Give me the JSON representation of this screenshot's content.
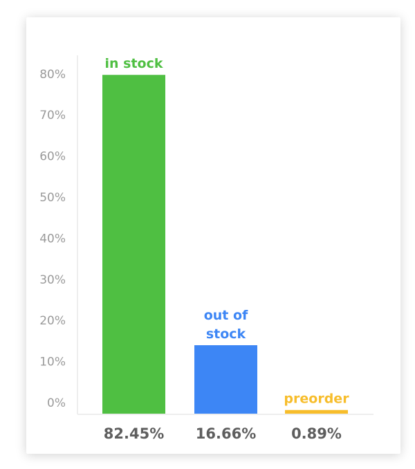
{
  "chart_data": {
    "type": "bar",
    "categories": [
      "in stock",
      "out of\nstock",
      "preorder"
    ],
    "values": [
      82.45,
      16.66,
      0.89
    ],
    "value_labels": [
      "82.45%",
      "16.66%",
      "0.89%"
    ],
    "colors": [
      "#4fbf42",
      "#3d86f5",
      "#f7bd2b"
    ],
    "ylim": [
      0,
      80
    ],
    "yticks": [
      "0%",
      "10%",
      "20%",
      "30%",
      "40%",
      "50%",
      "60%",
      "70%",
      "80%"
    ],
    "grid": false,
    "legend": "none"
  }
}
